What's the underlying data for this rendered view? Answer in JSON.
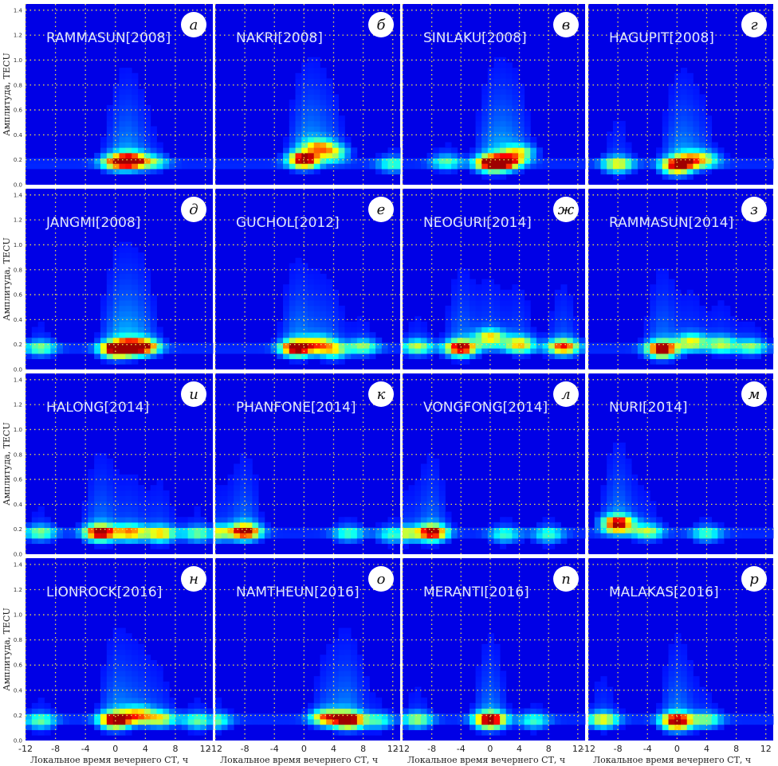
{
  "chart_data": {
    "type": "heatmap",
    "grid": "on",
    "colormap": "jet",
    "ylabel": "Амплитуда, TECU",
    "xlabel": "Локальное время вечернего СТ, ч",
    "xlim": [
      -12,
      13
    ],
    "ylim": [
      0,
      1.45
    ],
    "xticks": [
      -12,
      -8,
      -4,
      0,
      4,
      8,
      12
    ],
    "yticks": [
      "0.0",
      "0.2",
      "0.4",
      "0.6",
      "0.8",
      "1.0",
      "1.2",
      "1.4"
    ],
    "panels": [
      {
        "letter": "а",
        "title": "RAMMASUN[2008]",
        "blobs": [
          {
            "t": 2,
            "a": 0.19,
            "i": 0.9
          },
          {
            "t": 0,
            "a": 0.18,
            "i": 0.5
          },
          {
            "t": 5,
            "a": 0.18,
            "i": 0.3
          }
        ]
      },
      {
        "letter": "б",
        "title": "NAKRI[2008]",
        "blobs": [
          {
            "t": 0,
            "a": 0.2,
            "i": 1.0
          },
          {
            "t": 2,
            "a": 0.3,
            "i": 0.5
          },
          {
            "t": 4,
            "a": 0.25,
            "i": 0.45
          },
          {
            "t": 12,
            "a": 0.16,
            "i": 0.3
          }
        ]
      },
      {
        "letter": "в",
        "title": "SINLAKU[2008]",
        "blobs": [
          {
            "t": 0,
            "a": 0.17,
            "i": 0.85
          },
          {
            "t": 2,
            "a": 0.18,
            "i": 0.8
          },
          {
            "t": 4,
            "a": 0.25,
            "i": 0.5
          },
          {
            "t": -6,
            "a": 0.18,
            "i": 0.3
          }
        ]
      },
      {
        "letter": "г",
        "title": "HAGUPIT[2008]",
        "blobs": [
          {
            "t": 0,
            "a": 0.15,
            "i": 0.9
          },
          {
            "t": -8,
            "a": 0.16,
            "i": 0.5
          },
          {
            "t": 2,
            "a": 0.2,
            "i": 0.5
          },
          {
            "t": 4,
            "a": 0.2,
            "i": 0.3
          }
        ]
      },
      {
        "letter": "д",
        "title": "JANGMI[2008]",
        "blobs": [
          {
            "t": 0,
            "a": 0.16,
            "i": 0.9
          },
          {
            "t": 2,
            "a": 0.18,
            "i": 0.8
          },
          {
            "t": 4,
            "a": 0.18,
            "i": 0.6
          },
          {
            "t": -10,
            "a": 0.17,
            "i": 0.35
          }
        ]
      },
      {
        "letter": "е",
        "title": "GUCHOL[2012]",
        "blobs": [
          {
            "t": -1,
            "a": 0.17,
            "i": 1.0
          },
          {
            "t": 2,
            "a": 0.2,
            "i": 0.5
          },
          {
            "t": 4,
            "a": 0.15,
            "i": 0.45
          },
          {
            "t": 8,
            "a": 0.18,
            "i": 0.35
          }
        ]
      },
      {
        "letter": "ж",
        "title": "NEOGURI[2014]",
        "blobs": [
          {
            "t": -4,
            "a": 0.17,
            "i": 0.9
          },
          {
            "t": 0,
            "a": 0.25,
            "i": 0.6
          },
          {
            "t": 4,
            "a": 0.2,
            "i": 0.6
          },
          {
            "t": 10,
            "a": 0.18,
            "i": 0.7
          },
          {
            "t": -10,
            "a": 0.18,
            "i": 0.4
          }
        ]
      },
      {
        "letter": "з",
        "title": "RAMMASUN[2014]",
        "blobs": [
          {
            "t": -2,
            "a": 0.16,
            "i": 0.95
          },
          {
            "t": 2,
            "a": 0.22,
            "i": 0.5
          },
          {
            "t": 6,
            "a": 0.2,
            "i": 0.45
          },
          {
            "t": 10,
            "a": 0.18,
            "i": 0.35
          }
        ]
      },
      {
        "letter": "и",
        "title": "HALONG[2014]",
        "blobs": [
          {
            "t": -2,
            "a": 0.17,
            "i": 0.95
          },
          {
            "t": 2,
            "a": 0.17,
            "i": 0.6
          },
          {
            "t": 6,
            "a": 0.16,
            "i": 0.55
          },
          {
            "t": -10,
            "a": 0.17,
            "i": 0.35
          },
          {
            "t": 11,
            "a": 0.16,
            "i": 0.35
          }
        ]
      },
      {
        "letter": "к",
        "title": "PHANFONE[2014]",
        "blobs": [
          {
            "t": -8,
            "a": 0.18,
            "i": 0.9
          },
          {
            "t": -12,
            "a": 0.17,
            "i": 0.45
          },
          {
            "t": 6,
            "a": 0.16,
            "i": 0.3
          },
          {
            "t": 12,
            "a": 0.15,
            "i": 0.3
          }
        ]
      },
      {
        "letter": "л",
        "title": "VONGFONG[2014]",
        "blobs": [
          {
            "t": -8,
            "a": 0.17,
            "i": 0.9
          },
          {
            "t": -12,
            "a": 0.16,
            "i": 0.45
          },
          {
            "t": 2,
            "a": 0.15,
            "i": 0.3
          },
          {
            "t": 8,
            "a": 0.15,
            "i": 0.3
          }
        ]
      },
      {
        "letter": "м",
        "title": "NURI[2014]",
        "blobs": [
          {
            "t": -8,
            "a": 0.24,
            "i": 1.0
          },
          {
            "t": -4,
            "a": 0.18,
            "i": 0.4
          },
          {
            "t": 4,
            "a": 0.16,
            "i": 0.3
          }
        ]
      },
      {
        "letter": "н",
        "title": "LIONROCK[2016]",
        "blobs": [
          {
            "t": 0,
            "a": 0.16,
            "i": 1.0
          },
          {
            "t": 3,
            "a": 0.2,
            "i": 0.6
          },
          {
            "t": 6,
            "a": 0.17,
            "i": 0.45
          },
          {
            "t": -10,
            "a": 0.15,
            "i": 0.35
          },
          {
            "t": 11,
            "a": 0.15,
            "i": 0.35
          }
        ]
      },
      {
        "letter": "о",
        "title": "NAMTHEUN[2016]",
        "blobs": [
          {
            "t": 6,
            "a": 0.16,
            "i": 1.0
          },
          {
            "t": 3,
            "a": 0.18,
            "i": 0.6
          },
          {
            "t": -12,
            "a": 0.15,
            "i": 0.35
          },
          {
            "t": 10,
            "a": 0.15,
            "i": 0.3
          }
        ]
      },
      {
        "letter": "п",
        "title": "MERANTI[2016]",
        "blobs": [
          {
            "t": 0,
            "a": 0.16,
            "i": 1.0
          },
          {
            "t": -10,
            "a": 0.16,
            "i": 0.4
          },
          {
            "t": 6,
            "a": 0.15,
            "i": 0.3
          }
        ]
      },
      {
        "letter": "р",
        "title": "MALAKAS[2016]",
        "blobs": [
          {
            "t": 0,
            "a": 0.15,
            "i": 1.0
          },
          {
            "t": -10,
            "a": 0.16,
            "i": 0.5
          },
          {
            "t": 4,
            "a": 0.16,
            "i": 0.35
          }
        ]
      }
    ]
  }
}
